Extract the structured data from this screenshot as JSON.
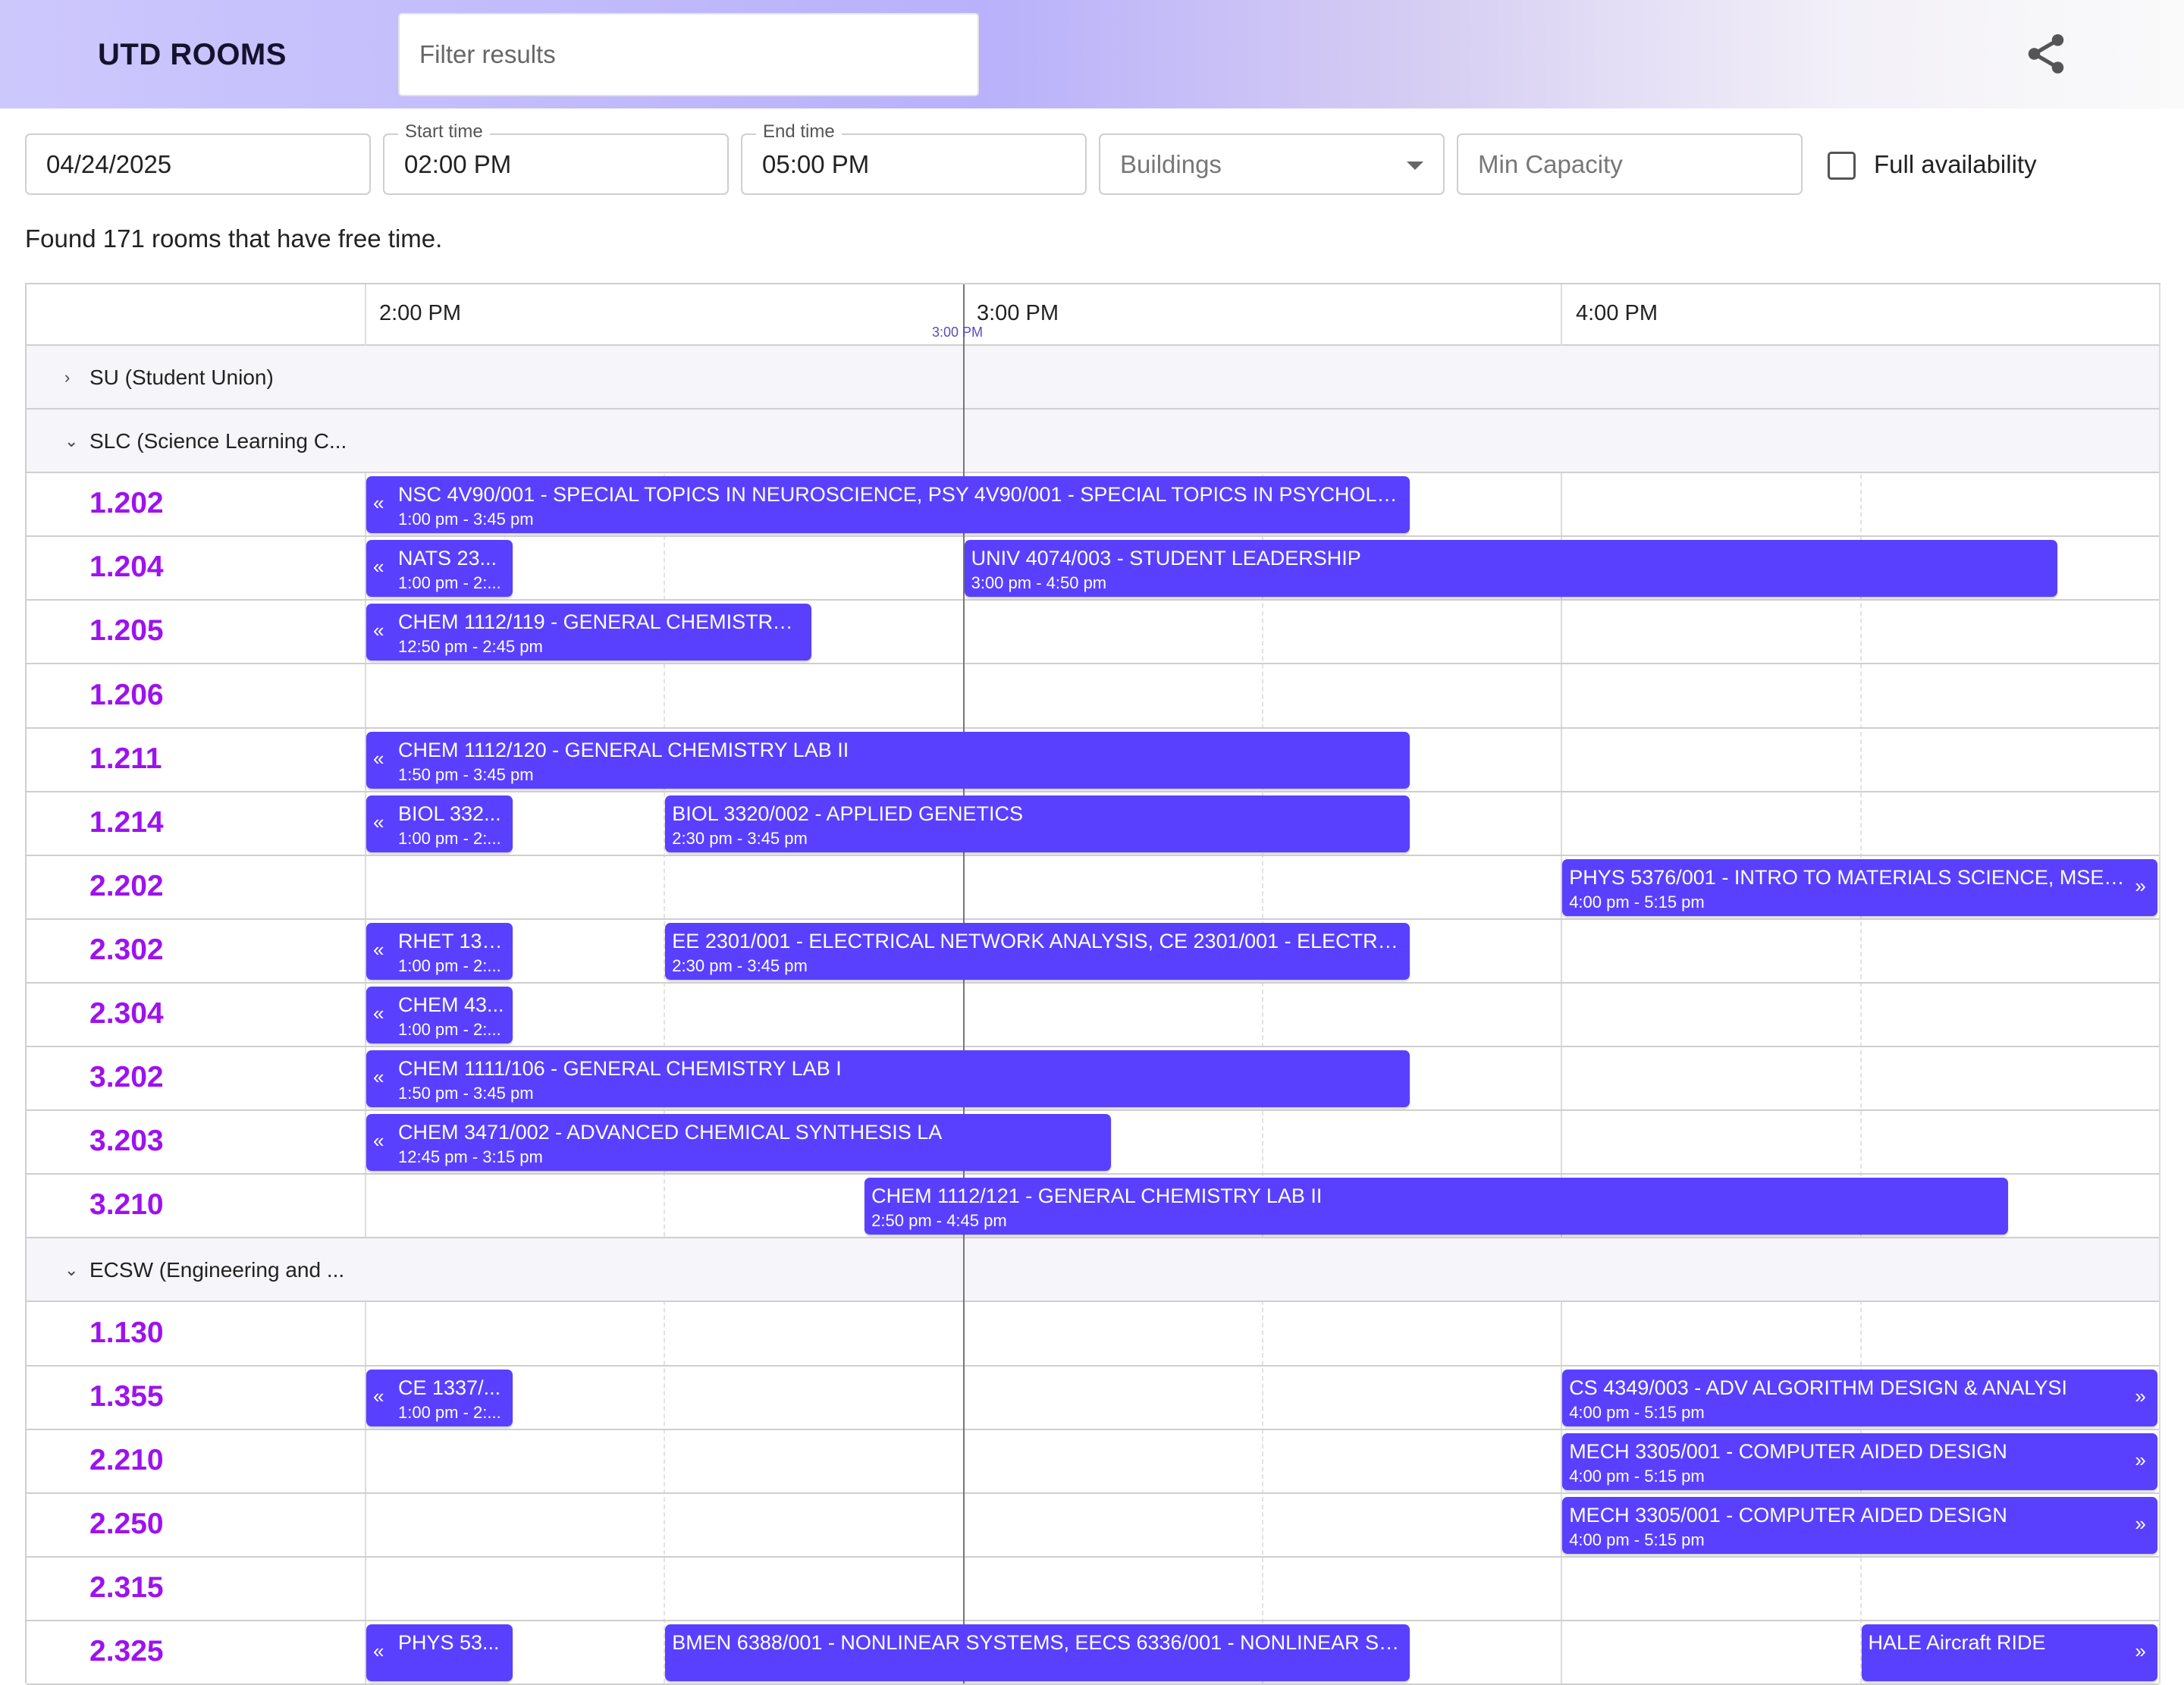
{
  "header": {
    "logo": "UTD ROOMS",
    "filter_placeholder": "Filter results",
    "share_icon": "share-icon"
  },
  "filters": {
    "date": "04/24/2025",
    "start_label": "Start time",
    "start": "02:00 PM",
    "end_label": "End time",
    "end": "05:00 PM",
    "buildings_placeholder": "Buildings",
    "capacity_placeholder": "Min Capacity",
    "full_availability": "Full availability",
    "full_availability_checked": false
  },
  "found_text": "Found 171 rooms that have free time.",
  "colors": {
    "event": "#5940ff",
    "room": "#9d12ef",
    "now_line": "#777777"
  },
  "timeline": {
    "start": "14:00",
    "end": "17:00",
    "hours": [
      "2:00 PM",
      "3:00 PM",
      "4:00 PM"
    ],
    "now_label": "3:00 PM",
    "now": "15:00"
  },
  "rows": [
    {
      "type": "group",
      "name": "SU (Student Union)",
      "expanded": false
    },
    {
      "type": "group",
      "name": "SLC (Science Learning C...",
      "expanded": true
    },
    {
      "type": "room",
      "name": "1.202",
      "events": [
        {
          "title": "NSC 4V90/001 - SPECIAL TOPICS IN NEUROSCIENCE, PSY 4V90/001 - SPECIAL TOPICS IN PSYCHOLOG...",
          "time": "1:00 pm - 3:45 pm",
          "start": "13:00",
          "end": "15:45"
        }
      ]
    },
    {
      "type": "room",
      "name": "1.204",
      "events": [
        {
          "title": "NATS 23...",
          "time": "1:00 pm - 2:...",
          "start": "13:00",
          "end": "14:15"
        },
        {
          "title": "UNIV 4074/003 - STUDENT LEADERSHIP",
          "time": "3:00 pm - 4:50 pm",
          "start": "15:00",
          "end": "16:50"
        }
      ]
    },
    {
      "type": "room",
      "name": "1.205",
      "events": [
        {
          "title": "CHEM 1112/119 - GENERAL CHEMISTRY L...",
          "time": "12:50 pm - 2:45 pm",
          "start": "12:50",
          "end": "14:45"
        }
      ]
    },
    {
      "type": "room",
      "name": "1.206",
      "events": []
    },
    {
      "type": "room",
      "name": "1.211",
      "events": [
        {
          "title": "CHEM 1112/120 - GENERAL CHEMISTRY LAB II",
          "time": "1:50 pm - 3:45 pm",
          "start": "13:50",
          "end": "15:45"
        }
      ]
    },
    {
      "type": "room",
      "name": "1.214",
      "events": [
        {
          "title": "BIOL 332...",
          "time": "1:00 pm - 2:...",
          "start": "13:00",
          "end": "14:15"
        },
        {
          "title": "BIOL 3320/002 - APPLIED GENETICS",
          "time": "2:30 pm - 3:45 pm",
          "start": "14:30",
          "end": "15:45"
        }
      ]
    },
    {
      "type": "room",
      "name": "2.202",
      "events": [
        {
          "title": "PHYS 5376/001 - INTRO TO MATERIALS SCIENCE, MSEN ...",
          "time": "4:00 pm - 5:15 pm",
          "start": "16:00",
          "end": "17:15"
        }
      ]
    },
    {
      "type": "room",
      "name": "2.302",
      "events": [
        {
          "title": "RHET 130...",
          "time": "1:00 pm - 2:...",
          "start": "13:00",
          "end": "14:15"
        },
        {
          "title": "EE 2301/001 - ELECTRICAL NETWORK ANALYSIS, CE 2301/001 - ELECTRIC...",
          "time": "2:30 pm - 3:45 pm",
          "start": "14:30",
          "end": "15:45"
        }
      ]
    },
    {
      "type": "room",
      "name": "2.304",
      "events": [
        {
          "title": "CHEM 43...",
          "time": "1:00 pm - 2:...",
          "start": "13:00",
          "end": "14:15"
        }
      ]
    },
    {
      "type": "room",
      "name": "3.202",
      "events": [
        {
          "title": "CHEM 1111/106 - GENERAL CHEMISTRY LAB I",
          "time": "1:50 pm - 3:45 pm",
          "start": "13:50",
          "end": "15:45"
        }
      ]
    },
    {
      "type": "room",
      "name": "3.203",
      "events": [
        {
          "title": "CHEM 3471/002 - ADVANCED CHEMICAL SYNTHESIS LA",
          "time": "12:45 pm - 3:15 pm",
          "start": "12:45",
          "end": "15:15"
        }
      ]
    },
    {
      "type": "room",
      "name": "3.210",
      "events": [
        {
          "title": "CHEM 1112/121 - GENERAL CHEMISTRY LAB II",
          "time": "2:50 pm - 4:45 pm",
          "start": "14:50",
          "end": "16:45"
        }
      ]
    },
    {
      "type": "group",
      "name": "ECSW (Engineering and ...",
      "expanded": true
    },
    {
      "type": "room",
      "name": "1.130",
      "events": []
    },
    {
      "type": "room",
      "name": "1.355",
      "events": [
        {
          "title": "CE 1337/...",
          "time": "1:00 pm - 2:...",
          "start": "13:00",
          "end": "14:15"
        },
        {
          "title": "CS 4349/003 - ADV ALGORITHM DESIGN & ANALYSI",
          "time": "4:00 pm - 5:15 pm",
          "start": "16:00",
          "end": "17:15"
        }
      ]
    },
    {
      "type": "room",
      "name": "2.210",
      "events": [
        {
          "title": "MECH 3305/001 - COMPUTER AIDED DESIGN",
          "time": "4:00 pm - 5:15 pm",
          "start": "16:00",
          "end": "17:15"
        }
      ]
    },
    {
      "type": "room",
      "name": "2.250",
      "events": [
        {
          "title": "MECH 3305/001 - COMPUTER AIDED DESIGN",
          "time": "4:00 pm - 5:15 pm",
          "start": "16:00",
          "end": "17:15"
        }
      ]
    },
    {
      "type": "room",
      "name": "2.315",
      "events": []
    },
    {
      "type": "room",
      "name": "2.325",
      "events": [
        {
          "title": "PHYS 53...",
          "time": "",
          "start": "13:00",
          "end": "14:15"
        },
        {
          "title": "BMEN 6388/001 - NONLINEAR SYSTEMS, EECS 6336/001 - NONLINEAR SY...",
          "time": "",
          "start": "14:30",
          "end": "15:45"
        },
        {
          "title": "HALE Aircraft RIDE",
          "time": "",
          "start": "16:30",
          "end": "17:30"
        }
      ]
    }
  ]
}
